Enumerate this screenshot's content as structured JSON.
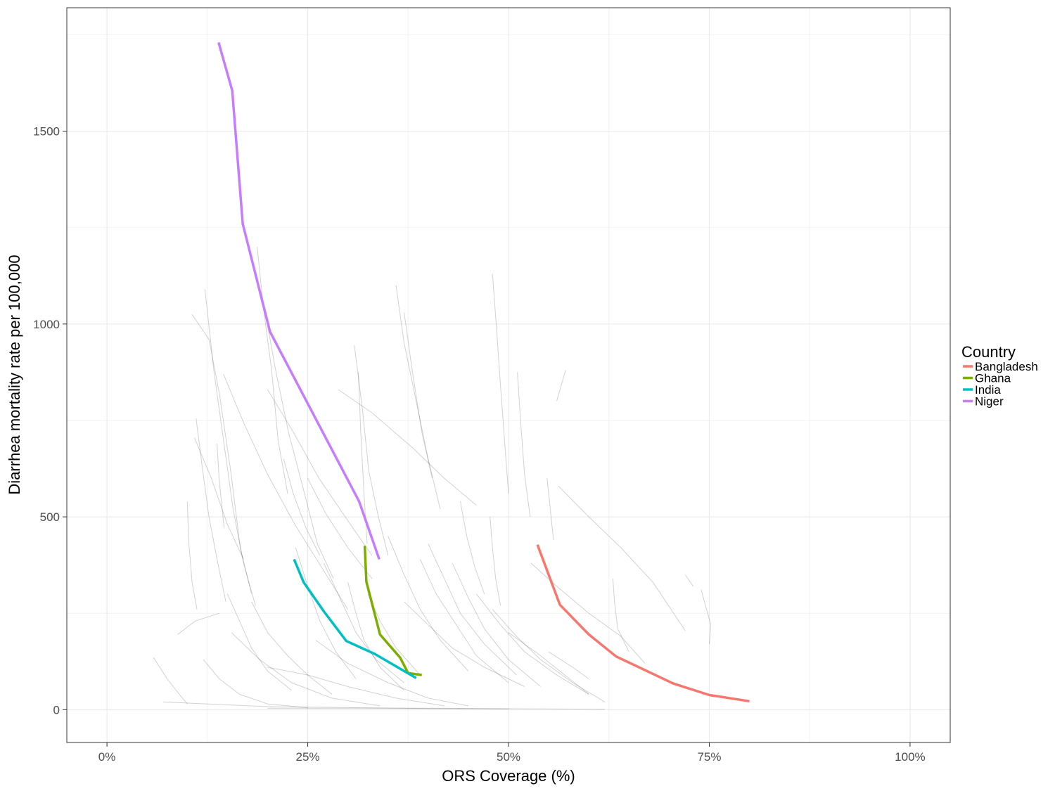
{
  "chart_data": {
    "type": "line",
    "xlabel": "ORS Coverage (%)",
    "ylabel": "Diarrhea mortality rate per 100,000",
    "xlim": [
      -0.05,
      1.05
    ],
    "ylim": [
      -85,
      1820
    ],
    "x_ticks": [
      {
        "value": 0,
        "label": "0%"
      },
      {
        "value": 0.25,
        "label": "25%"
      },
      {
        "value": 0.5,
        "label": "50%"
      },
      {
        "value": 0.75,
        "label": "75%"
      },
      {
        "value": 1.0,
        "label": "100%"
      }
    ],
    "y_ticks": [
      {
        "value": 0,
        "label": "0"
      },
      {
        "value": 500,
        "label": "500"
      },
      {
        "value": 1000,
        "label": "1000"
      },
      {
        "value": 1500,
        "label": "1500"
      }
    ],
    "grid": true,
    "legend": {
      "title": "Country",
      "position": "right"
    },
    "series": [
      {
        "name": "Bangladesh",
        "color": "#F8766D",
        "points": [
          [
            0.536,
            428
          ],
          [
            0.564,
            272
          ],
          [
            0.6,
            195
          ],
          [
            0.634,
            138
          ],
          [
            0.705,
            68
          ],
          [
            0.75,
            38
          ],
          [
            0.8,
            22
          ]
        ]
      },
      {
        "name": "Ghana",
        "color": "#7CAE00",
        "points": [
          [
            0.321,
            425
          ],
          [
            0.323,
            332
          ],
          [
            0.34,
            195
          ],
          [
            0.365,
            135
          ],
          [
            0.375,
            95
          ],
          [
            0.392,
            90
          ]
        ]
      },
      {
        "name": "India",
        "color": "#00BFC4",
        "points": [
          [
            0.233,
            390
          ],
          [
            0.245,
            330
          ],
          [
            0.27,
            255
          ],
          [
            0.298,
            178
          ],
          [
            0.333,
            145
          ],
          [
            0.385,
            82
          ]
        ]
      },
      {
        "name": "Niger",
        "color": "#C77CFF",
        "points": [
          [
            0.139,
            1730
          ],
          [
            0.156,
            1605
          ],
          [
            0.169,
            1260
          ],
          [
            0.203,
            980
          ],
          [
            0.314,
            540
          ],
          [
            0.339,
            390
          ]
        ]
      }
    ],
    "background_series": [
      [
        [
          0.106,
          1025
        ],
        [
          0.127,
          960
        ],
        [
          0.14,
          820
        ],
        [
          0.154,
          620
        ],
        [
          0.166,
          420
        ],
        [
          0.18,
          300
        ]
      ],
      [
        [
          0.122,
          1090
        ],
        [
          0.133,
          880
        ],
        [
          0.145,
          700
        ],
        [
          0.157,
          520
        ],
        [
          0.17,
          380
        ],
        [
          0.185,
          270
        ]
      ],
      [
        [
          0.145,
          870
        ],
        [
          0.171,
          740
        ],
        [
          0.2,
          610
        ],
        [
          0.234,
          480
        ],
        [
          0.27,
          360
        ],
        [
          0.3,
          260
        ]
      ],
      [
        [
          0.187,
          1200
        ],
        [
          0.195,
          1040
        ],
        [
          0.205,
          880
        ],
        [
          0.213,
          700
        ],
        [
          0.225,
          560
        ]
      ],
      [
        [
          0.198,
          1020
        ],
        [
          0.21,
          880
        ],
        [
          0.226,
          720
        ],
        [
          0.246,
          560
        ],
        [
          0.262,
          430
        ],
        [
          0.282,
          340
        ]
      ],
      [
        [
          0.2,
          830
        ],
        [
          0.232,
          720
        ],
        [
          0.264,
          600
        ],
        [
          0.3,
          490
        ],
        [
          0.33,
          400
        ]
      ],
      [
        [
          0.308,
          945
        ],
        [
          0.318,
          780
        ],
        [
          0.326,
          620
        ],
        [
          0.338,
          500
        ],
        [
          0.35,
          400
        ]
      ],
      [
        [
          0.313,
          875
        ],
        [
          0.316,
          720
        ],
        [
          0.32,
          560
        ],
        [
          0.324,
          430
        ]
      ],
      [
        [
          0.36,
          1100
        ],
        [
          0.37,
          950
        ],
        [
          0.385,
          800
        ],
        [
          0.4,
          650
        ],
        [
          0.415,
          520
        ]
      ],
      [
        [
          0.37,
          1030
        ],
        [
          0.38,
          880
        ],
        [
          0.392,
          720
        ],
        [
          0.405,
          600
        ]
      ],
      [
        [
          0.288,
          830
        ],
        [
          0.33,
          770
        ],
        [
          0.38,
          680
        ],
        [
          0.42,
          600
        ],
        [
          0.46,
          530
        ]
      ],
      [
        [
          0.48,
          1130
        ],
        [
          0.485,
          990
        ],
        [
          0.49,
          840
        ],
        [
          0.495,
          700
        ],
        [
          0.5,
          560
        ]
      ],
      [
        [
          0.511,
          875
        ],
        [
          0.515,
          750
        ],
        [
          0.52,
          610
        ],
        [
          0.527,
          500
        ]
      ],
      [
        [
          0.56,
          800
        ],
        [
          0.571,
          880
        ]
      ],
      [
        [
          0.562,
          580
        ],
        [
          0.6,
          500
        ],
        [
          0.64,
          420
        ],
        [
          0.68,
          330
        ],
        [
          0.72,
          205
        ]
      ],
      [
        [
          0.111,
          755
        ],
        [
          0.118,
          640
        ],
        [
          0.127,
          500
        ],
        [
          0.138,
          380
        ],
        [
          0.148,
          280
        ]
      ],
      [
        [
          0.109,
          705
        ],
        [
          0.13,
          600
        ],
        [
          0.15,
          480
        ],
        [
          0.17,
          390
        ]
      ],
      [
        [
          0.1,
          540
        ],
        [
          0.102,
          430
        ],
        [
          0.106,
          330
        ],
        [
          0.112,
          260
        ]
      ],
      [
        [
          0.137,
          690
        ],
        [
          0.14,
          590
        ],
        [
          0.146,
          470
        ]
      ],
      [
        [
          0.22,
          650
        ],
        [
          0.232,
          560
        ],
        [
          0.248,
          470
        ],
        [
          0.265,
          400
        ]
      ],
      [
        [
          0.25,
          600
        ],
        [
          0.272,
          510
        ],
        [
          0.3,
          420
        ],
        [
          0.33,
          340
        ]
      ],
      [
        [
          0.44,
          540
        ],
        [
          0.448,
          450
        ],
        [
          0.458,
          370
        ],
        [
          0.47,
          300
        ]
      ],
      [
        [
          0.477,
          500
        ],
        [
          0.48,
          420
        ],
        [
          0.484,
          340
        ],
        [
          0.49,
          270
        ]
      ],
      [
        [
          0.548,
          600
        ],
        [
          0.552,
          520
        ],
        [
          0.556,
          440
        ]
      ],
      [
        [
          0.528,
          380
        ],
        [
          0.56,
          320
        ],
        [
          0.6,
          250
        ],
        [
          0.64,
          190
        ],
        [
          0.67,
          120
        ]
      ],
      [
        [
          0.63,
          340
        ],
        [
          0.632,
          280
        ],
        [
          0.636,
          210
        ],
        [
          0.65,
          150
        ]
      ],
      [
        [
          0.72,
          350
        ],
        [
          0.73,
          320
        ]
      ],
      [
        [
          0.74,
          310
        ],
        [
          0.752,
          220
        ],
        [
          0.75,
          170
        ]
      ],
      [
        [
          0.088,
          195
        ],
        [
          0.11,
          230
        ],
        [
          0.14,
          250
        ]
      ],
      [
        [
          0.058,
          135
        ],
        [
          0.075,
          80
        ],
        [
          0.09,
          40
        ],
        [
          0.1,
          15
        ]
      ],
      [
        [
          0.12,
          130
        ],
        [
          0.14,
          80
        ],
        [
          0.165,
          40
        ],
        [
          0.2,
          15
        ],
        [
          0.25,
          5
        ]
      ],
      [
        [
          0.155,
          200
        ],
        [
          0.19,
          130
        ],
        [
          0.23,
          70
        ],
        [
          0.28,
          30
        ],
        [
          0.34,
          10
        ]
      ],
      [
        [
          0.235,
          420
        ],
        [
          0.25,
          320
        ],
        [
          0.265,
          230
        ],
        [
          0.285,
          150
        ],
        [
          0.31,
          80
        ]
      ],
      [
        [
          0.27,
          380
        ],
        [
          0.29,
          290
        ],
        [
          0.31,
          200
        ],
        [
          0.335,
          130
        ],
        [
          0.37,
          70
        ]
      ],
      [
        [
          0.35,
          450
        ],
        [
          0.37,
          350
        ],
        [
          0.39,
          260
        ],
        [
          0.415,
          180
        ],
        [
          0.45,
          100
        ]
      ],
      [
        [
          0.39,
          390
        ],
        [
          0.41,
          300
        ],
        [
          0.435,
          220
        ],
        [
          0.46,
          140
        ],
        [
          0.5,
          70
        ]
      ],
      [
        [
          0.43,
          380
        ],
        [
          0.45,
          290
        ],
        [
          0.47,
          210
        ],
        [
          0.5,
          130
        ],
        [
          0.54,
          60
        ]
      ],
      [
        [
          0.46,
          300
        ],
        [
          0.49,
          220
        ],
        [
          0.52,
          150
        ],
        [
          0.56,
          90
        ],
        [
          0.6,
          40
        ]
      ],
      [
        [
          0.48,
          260
        ],
        [
          0.51,
          190
        ],
        [
          0.54,
          130
        ],
        [
          0.58,
          70
        ],
        [
          0.62,
          20
        ]
      ],
      [
        [
          0.5,
          200
        ],
        [
          0.54,
          140
        ],
        [
          0.57,
          90
        ],
        [
          0.6,
          40
        ]
      ],
      [
        [
          0.26,
          180
        ],
        [
          0.3,
          120
        ],
        [
          0.35,
          70
        ],
        [
          0.4,
          30
        ],
        [
          0.45,
          10
        ]
      ],
      [
        [
          0.2,
          110
        ],
        [
          0.25,
          90
        ],
        [
          0.3,
          60
        ],
        [
          0.36,
          30
        ],
        [
          0.42,
          10
        ]
      ],
      [
        [
          0.3,
          330
        ],
        [
          0.31,
          250
        ],
        [
          0.32,
          180
        ],
        [
          0.34,
          110
        ],
        [
          0.37,
          50
        ]
      ],
      [
        [
          0.325,
          300
        ],
        [
          0.34,
          230
        ],
        [
          0.36,
          160
        ],
        [
          0.39,
          90
        ]
      ],
      [
        [
          0.4,
          430
        ],
        [
          0.42,
          340
        ],
        [
          0.44,
          250
        ],
        [
          0.47,
          170
        ],
        [
          0.51,
          90
        ]
      ],
      [
        [
          0.55,
          150
        ],
        [
          0.58,
          110
        ],
        [
          0.6,
          80
        ]
      ],
      [
        [
          0.37,
          280
        ],
        [
          0.4,
          220
        ],
        [
          0.43,
          160
        ],
        [
          0.47,
          110
        ],
        [
          0.52,
          60
        ]
      ],
      [
        [
          0.15,
          300
        ],
        [
          0.165,
          230
        ],
        [
          0.18,
          160
        ],
        [
          0.2,
          100
        ],
        [
          0.23,
          50
        ]
      ],
      [
        [
          0.18,
          280
        ],
        [
          0.2,
          200
        ],
        [
          0.225,
          140
        ],
        [
          0.25,
          90
        ],
        [
          0.28,
          40
        ]
      ],
      [
        [
          0.07,
          20
        ],
        [
          0.2,
          8
        ],
        [
          0.4,
          3
        ],
        [
          0.5,
          2
        ]
      ],
      [
        [
          0.2,
          4
        ],
        [
          0.4,
          4
        ],
        [
          0.55,
          2
        ],
        [
          0.62,
          1
        ]
      ]
    ]
  }
}
